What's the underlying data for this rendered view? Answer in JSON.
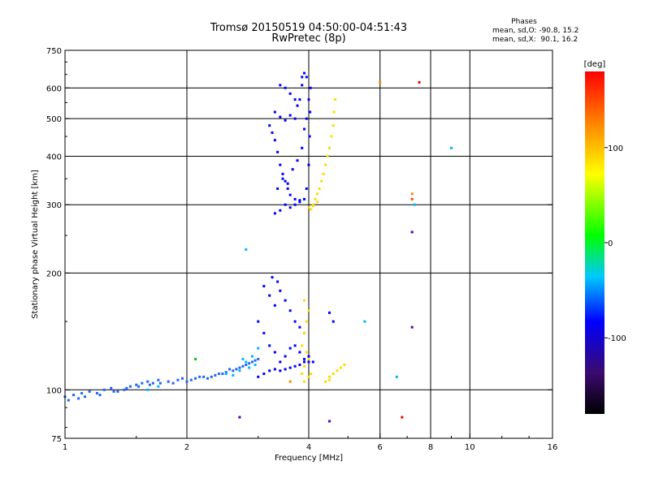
{
  "header": {
    "title_line1": "Tromsø 20150519 04:50:00-04:51:43",
    "title_line2": "RwPretec (8p)"
  },
  "phases_box": {
    "title": "Phases",
    "line_o": "mean, sd,O: -90.8, 15.2",
    "line_x": "mean, sd,X:  90.1, 16.2"
  },
  "chart_data": {
    "type": "scatter",
    "title": "Tromsø 20150519 04:50:00-04:51:43",
    "subtitle": "RwPretec (8p)",
    "xlabel": "Frequency [MHz]",
    "ylabel": "Stationary phase Virtual Height [km]",
    "x_scale": "log",
    "y_scale": "log",
    "xlim": [
      1,
      16
    ],
    "ylim": [
      75,
      750
    ],
    "x_ticks": [
      1,
      2,
      4,
      6,
      8,
      10,
      16
    ],
    "x_tick_labels": [
      "1",
      "2",
      "4",
      "6",
      "8",
      "10",
      "16"
    ],
    "y_ticks": [
      75,
      100,
      200,
      300,
      400,
      500,
      600,
      750
    ],
    "y_tick_labels": [
      "75",
      "100",
      "200",
      "300",
      "400",
      "500",
      "600",
      "750"
    ],
    "grid": true,
    "colorbar": {
      "label": "[deg]",
      "range": [
        -180,
        180
      ],
      "ticks": [
        100,
        0,
        -100
      ],
      "tick_labels": [
        "100",
        "0",
        "-100"
      ],
      "colors": [
        "#000000",
        "#3b0a6e",
        "#0000ff",
        "#00c8ff",
        "#00ff00",
        "#ffff00",
        "#ff8c00",
        "#ff0000"
      ]
    },
    "series": [
      {
        "color": "#0000ff",
        "points": [
          [
            3.2,
            480
          ],
          [
            3.3,
            520
          ],
          [
            3.4,
            505
          ],
          [
            3.5,
            495
          ],
          [
            3.6,
            510
          ],
          [
            3.7,
            500
          ],
          [
            3.25,
            460
          ],
          [
            3.3,
            440
          ],
          [
            3.35,
            410
          ],
          [
            3.4,
            380
          ],
          [
            3.45,
            360
          ],
          [
            3.5,
            345
          ],
          [
            3.55,
            330
          ],
          [
            3.6,
            318
          ],
          [
            3.7,
            310
          ],
          [
            3.8,
            305
          ],
          [
            3.9,
            310
          ],
          [
            3.95,
            330
          ],
          [
            4.0,
            380
          ],
          [
            4.02,
            450
          ],
          [
            4.03,
            520
          ],
          [
            4.04,
            600
          ],
          [
            3.95,
            640
          ],
          [
            3.9,
            655
          ],
          [
            3.85,
            610
          ],
          [
            3.8,
            560
          ],
          [
            3.75,
            540
          ],
          [
            3.7,
            560
          ],
          [
            3.6,
            580
          ],
          [
            3.5,
            600
          ],
          [
            3.4,
            610
          ],
          [
            3.3,
            285
          ],
          [
            3.4,
            290
          ],
          [
            3.5,
            300
          ],
          [
            3.6,
            295
          ],
          [
            3.7,
            300
          ],
          [
            3.8,
            308
          ],
          [
            3.35,
            330
          ],
          [
            3.45,
            350
          ],
          [
            3.55,
            340
          ],
          [
            3.65,
            370
          ],
          [
            3.75,
            390
          ],
          [
            3.85,
            420
          ],
          [
            3.9,
            470
          ],
          [
            3.95,
            500
          ],
          [
            4.0,
            560
          ],
          [
            3.85,
            640
          ]
        ]
      },
      {
        "color": "#0000ff",
        "points": [
          [
            3.1,
            185
          ],
          [
            3.2,
            175
          ],
          [
            3.3,
            165
          ],
          [
            3.4,
            180
          ],
          [
            3.5,
            170
          ],
          [
            3.6,
            160
          ],
          [
            3.7,
            150
          ],
          [
            3.8,
            145
          ],
          [
            3.9,
            140
          ],
          [
            3.0,
            150
          ],
          [
            3.1,
            140
          ],
          [
            3.2,
            130
          ],
          [
            3.3,
            125
          ],
          [
            3.4,
            118
          ],
          [
            3.5,
            122
          ],
          [
            3.6,
            128
          ],
          [
            3.7,
            130
          ],
          [
            3.8,
            125
          ],
          [
            3.9,
            120
          ],
          [
            4.0,
            118
          ],
          [
            3.0,
            108
          ],
          [
            3.1,
            110
          ],
          [
            3.2,
            112
          ],
          [
            3.3,
            113
          ],
          [
            3.4,
            112
          ],
          [
            3.5,
            113
          ],
          [
            3.6,
            114
          ],
          [
            3.7,
            115
          ],
          [
            3.8,
            116
          ],
          [
            3.9,
            118
          ],
          [
            4.0,
            122
          ],
          [
            4.1,
            118
          ],
          [
            3.25,
            195
          ],
          [
            3.35,
            190
          ],
          [
            4.5,
            158
          ],
          [
            4.6,
            150
          ]
        ]
      },
      {
        "color": "#1e64ff",
        "points": [
          [
            1.0,
            96
          ],
          [
            1.02,
            94
          ],
          [
            1.05,
            97
          ],
          [
            1.08,
            95
          ],
          [
            1.1,
            98
          ],
          [
            1.15,
            99
          ],
          [
            1.2,
            98
          ],
          [
            1.25,
            100
          ],
          [
            1.3,
            101
          ],
          [
            1.35,
            99
          ],
          [
            1.4,
            100
          ],
          [
            1.45,
            102
          ],
          [
            1.5,
            103
          ],
          [
            1.55,
            104
          ],
          [
            1.6,
            105
          ],
          [
            1.65,
            104
          ],
          [
            1.7,
            106
          ],
          [
            1.8,
            105
          ],
          [
            1.9,
            106
          ],
          [
            2.0,
            105
          ],
          [
            2.1,
            107
          ],
          [
            2.2,
            108
          ],
          [
            2.3,
            108
          ],
          [
            2.4,
            110
          ],
          [
            2.5,
            111
          ],
          [
            2.6,
            112
          ],
          [
            2.7,
            114
          ],
          [
            2.8,
            116
          ],
          [
            2.9,
            118
          ],
          [
            3.0,
            120
          ],
          [
            1.12,
            96
          ],
          [
            1.22,
            97
          ],
          [
            1.32,
            99
          ],
          [
            1.42,
            101
          ],
          [
            1.52,
            102
          ],
          [
            1.62,
            103
          ],
          [
            1.72,
            104
          ],
          [
            1.85,
            104
          ],
          [
            1.95,
            107
          ],
          [
            2.05,
            106
          ],
          [
            2.15,
            108
          ],
          [
            2.25,
            107
          ],
          [
            2.35,
            109
          ],
          [
            2.45,
            110
          ],
          [
            2.55,
            113
          ],
          [
            2.65,
            113
          ],
          [
            2.75,
            115
          ],
          [
            2.85,
            117
          ],
          [
            2.95,
            119
          ]
        ]
      },
      {
        "color": "#00b4ff",
        "points": [
          [
            2.7,
            112
          ],
          [
            2.8,
            118
          ],
          [
            2.9,
            122
          ],
          [
            3.0,
            128
          ],
          [
            2.5,
            110
          ],
          [
            2.6,
            109
          ],
          [
            2.75,
            120
          ],
          [
            2.85,
            114
          ],
          [
            2.95,
            116
          ],
          [
            1.6,
            100
          ],
          [
            1.7,
            102
          ],
          [
            2.8,
            230
          ],
          [
            5.5,
            150
          ],
          [
            9.0,
            420
          ],
          [
            6.6,
            108
          ],
          [
            7.3,
            300
          ]
        ]
      },
      {
        "color": "#ffdc00",
        "points": [
          [
            4.0,
            295
          ],
          [
            4.05,
            292
          ],
          [
            4.1,
            300
          ],
          [
            4.15,
            310
          ],
          [
            4.2,
            320
          ],
          [
            4.25,
            330
          ],
          [
            4.3,
            345
          ],
          [
            4.35,
            360
          ],
          [
            4.4,
            380
          ],
          [
            4.45,
            400
          ],
          [
            4.5,
            420
          ],
          [
            4.55,
            450
          ],
          [
            4.6,
            480
          ],
          [
            4.62,
            520
          ],
          [
            4.65,
            560
          ],
          [
            4.1,
            298
          ],
          [
            4.2,
            305
          ],
          [
            3.85,
            130
          ],
          [
            3.9,
            140
          ],
          [
            3.95,
            150
          ],
          [
            4.0,
            160
          ],
          [
            3.9,
            170
          ],
          [
            3.95,
            125
          ],
          [
            4.0,
            120
          ],
          [
            3.9,
            115
          ],
          [
            3.85,
            110
          ],
          [
            3.9,
            105
          ],
          [
            4.0,
            108
          ],
          [
            4.05,
            110
          ],
          [
            4.5,
            108
          ],
          [
            4.6,
            110
          ],
          [
            4.7,
            112
          ],
          [
            4.8,
            114
          ],
          [
            4.9,
            116
          ],
          [
            4.4,
            105
          ],
          [
            4.5,
            106
          ]
        ]
      },
      {
        "color": "#ff8c00",
        "points": [
          [
            3.6,
            105
          ],
          [
            6.0,
            620
          ],
          [
            7.2,
            320
          ]
        ]
      },
      {
        "color": "#ff0000",
        "points": [
          [
            7.5,
            620
          ],
          [
            6.8,
            85
          ]
        ]
      },
      {
        "color": "#ff4600",
        "points": [
          [
            7.2,
            310
          ]
        ]
      },
      {
        "color": "#00c800",
        "points": [
          [
            2.1,
            120
          ]
        ]
      },
      {
        "color": "#5000b4",
        "points": [
          [
            4.5,
            83
          ],
          [
            2.7,
            85
          ],
          [
            7.2,
            145
          ],
          [
            7.2,
            255
          ]
        ]
      }
    ]
  }
}
